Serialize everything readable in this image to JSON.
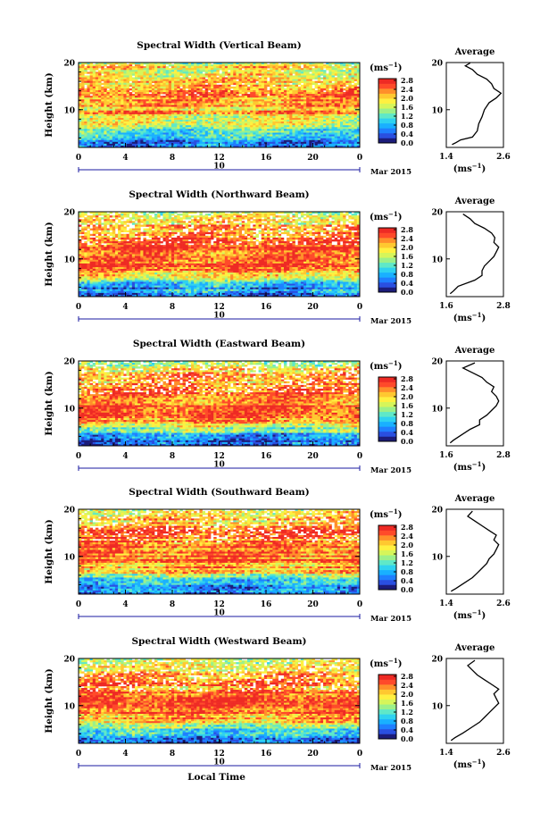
{
  "figure": {
    "xlabel_bottom": "Local Time",
    "date_label": "Mar 2015",
    "date_day": "10",
    "unit_label": "(ms",
    "unit_exp": "−1",
    "avg_title": "Average"
  },
  "palette": [
    "#1c1c7a",
    "#2a4fe0",
    "#1f7fff",
    "#19b0ff",
    "#2fd2f0",
    "#5fe8c8",
    "#9cf08a",
    "#d6f55a",
    "#fff040",
    "#ffc830",
    "#ff8f2a",
    "#ff4a2a",
    "#ee2a24"
  ],
  "chart_data": [
    {
      "type": "heatmap",
      "title": "Spectral Width (Vertical Beam)",
      "xlabel": "",
      "ylabel": "Height (km)",
      "xlim": [
        0,
        24
      ],
      "ylim": [
        2,
        20
      ],
      "xticks": [
        "0",
        "4",
        "8",
        "12",
        "16",
        "20",
        "0"
      ],
      "yticks": [
        "20",
        "10"
      ],
      "colorbar": {
        "unit": "ms-1",
        "ticks": [
          "0.0",
          "0.4",
          "0.8",
          "1.2",
          "1.6",
          "2.0",
          "2.4",
          "2.8"
        ]
      },
      "height_profile": [
        [
          3,
          0.5
        ],
        [
          5,
          1.0
        ],
        [
          7,
          1.8
        ],
        [
          9,
          2.2
        ],
        [
          11,
          2.3
        ],
        [
          13,
          2.6
        ],
        [
          15,
          2.4
        ],
        [
          17,
          2.1
        ],
        [
          19,
          1.9
        ],
        [
          20,
          1.6
        ]
      ],
      "average_profile": {
        "xlim": [
          1.4,
          2.6
        ],
        "xticks": [
          "1.4",
          "2.6"
        ],
        "points": [
          [
            1.52,
            2.6
          ],
          [
            1.6,
            3.0
          ],
          [
            1.7,
            3.6
          ],
          [
            1.95,
            4.2
          ],
          [
            2.05,
            5.5
          ],
          [
            2.08,
            7.0
          ],
          [
            2.15,
            8.5
          ],
          [
            2.2,
            10.0
          ],
          [
            2.3,
            11.5
          ],
          [
            2.45,
            12.5
          ],
          [
            2.55,
            13.5
          ],
          [
            2.4,
            14.5
          ],
          [
            2.35,
            15.5
          ],
          [
            2.25,
            16.5
          ],
          [
            2.05,
            17.5
          ],
          [
            1.95,
            18.5
          ],
          [
            1.8,
            19.3
          ],
          [
            1.9,
            19.9
          ]
        ]
      }
    },
    {
      "type": "heatmap",
      "title": "Spectral Width (Northward Beam)",
      "xlabel": "",
      "ylabel": "Height (km)",
      "xlim": [
        0,
        24
      ],
      "ylim": [
        2,
        20
      ],
      "xticks": [
        "0",
        "4",
        "8",
        "12",
        "16",
        "20",
        "0"
      ],
      "yticks": [
        "20",
        "10"
      ],
      "colorbar": {
        "unit": "ms-1",
        "ticks": [
          "0.0",
          "0.4",
          "0.8",
          "1.2",
          "1.6",
          "2.0",
          "2.4",
          "2.8"
        ]
      },
      "height_profile": [
        [
          3,
          0.7
        ],
        [
          5,
          1.2
        ],
        [
          7,
          2.2
        ],
        [
          9,
          2.6
        ],
        [
          11,
          2.7
        ],
        [
          13,
          2.6
        ],
        [
          15,
          2.5
        ],
        [
          17,
          2.2
        ],
        [
          19,
          2.0
        ],
        [
          20,
          1.8
        ]
      ],
      "average_profile": {
        "xlim": [
          1.6,
          2.8
        ],
        "xticks": [
          "1.6",
          "2.8"
        ],
        "points": [
          [
            1.68,
            2.6
          ],
          [
            1.75,
            3.2
          ],
          [
            1.85,
            4.2
          ],
          [
            2.2,
            5.5
          ],
          [
            2.35,
            6.5
          ],
          [
            2.35,
            7.5
          ],
          [
            2.4,
            8.5
          ],
          [
            2.5,
            9.5
          ],
          [
            2.6,
            10.5
          ],
          [
            2.65,
            11.5
          ],
          [
            2.7,
            12.5
          ],
          [
            2.6,
            13.5
          ],
          [
            2.62,
            14.5
          ],
          [
            2.55,
            15.5
          ],
          [
            2.4,
            16.5
          ],
          [
            2.2,
            17.5
          ],
          [
            2.1,
            18.5
          ],
          [
            1.95,
            19.5
          ]
        ]
      }
    },
    {
      "type": "heatmap",
      "title": "Spectral Width (Eastward Beam)",
      "xlabel": "",
      "ylabel": "Height (km)",
      "xlim": [
        0,
        24
      ],
      "ylim": [
        2,
        20
      ],
      "xticks": [
        "0",
        "4",
        "8",
        "12",
        "16",
        "20",
        "0"
      ],
      "yticks": [
        "20",
        "10"
      ],
      "colorbar": {
        "unit": "ms-1",
        "ticks": [
          "0.0",
          "0.4",
          "0.8",
          "1.2",
          "1.6",
          "2.0",
          "2.4",
          "2.8"
        ]
      },
      "height_profile": [
        [
          3,
          0.6
        ],
        [
          5,
          1.3
        ],
        [
          7,
          2.3
        ],
        [
          9,
          2.7
        ],
        [
          11,
          2.7
        ],
        [
          13,
          2.5
        ],
        [
          15,
          2.4
        ],
        [
          17,
          2.1
        ],
        [
          19,
          2.0
        ],
        [
          20,
          1.7
        ]
      ],
      "average_profile": {
        "xlim": [
          1.6,
          2.8
        ],
        "xticks": [
          "1.6",
          "2.8"
        ],
        "points": [
          [
            1.68,
            2.6
          ],
          [
            1.75,
            3.2
          ],
          [
            1.9,
            4.2
          ],
          [
            2.1,
            5.5
          ],
          [
            2.3,
            6.5
          ],
          [
            2.3,
            7.5
          ],
          [
            2.45,
            8.5
          ],
          [
            2.55,
            9.5
          ],
          [
            2.65,
            10.5
          ],
          [
            2.7,
            11.5
          ],
          [
            2.65,
            12.5
          ],
          [
            2.55,
            13.5
          ],
          [
            2.6,
            14.5
          ],
          [
            2.45,
            15.5
          ],
          [
            2.35,
            16.5
          ],
          [
            2.15,
            17.5
          ],
          [
            1.95,
            18.5
          ],
          [
            2.2,
            19.6
          ]
        ]
      }
    },
    {
      "type": "heatmap",
      "title": "Spectral Width (Southward Beam)",
      "xlabel": "",
      "ylabel": "Height (km)",
      "xlim": [
        0,
        24
      ],
      "ylim": [
        2,
        20
      ],
      "xticks": [
        "0",
        "4",
        "8",
        "12",
        "16",
        "20",
        "0"
      ],
      "yticks": [
        "20",
        "10"
      ],
      "colorbar": {
        "unit": "ms-1",
        "ticks": [
          "0.0",
          "0.4",
          "0.8",
          "1.2",
          "1.6",
          "2.0",
          "2.4",
          "2.8"
        ]
      },
      "height_profile": [
        [
          3,
          0.6
        ],
        [
          5,
          1.2
        ],
        [
          7,
          2.1
        ],
        [
          9,
          2.6
        ],
        [
          11,
          2.6
        ],
        [
          13,
          2.5
        ],
        [
          15,
          2.5
        ],
        [
          17,
          2.2
        ],
        [
          19,
          2.0
        ],
        [
          20,
          1.8
        ]
      ],
      "average_profile": {
        "xlim": [
          1.4,
          2.6
        ],
        "xticks": [
          "1.4",
          "2.6"
        ],
        "points": [
          [
            1.5,
            2.6
          ],
          [
            1.6,
            3.2
          ],
          [
            1.75,
            4.2
          ],
          [
            1.95,
            5.5
          ],
          [
            2.05,
            6.5
          ],
          [
            2.15,
            7.5
          ],
          [
            2.25,
            8.5
          ],
          [
            2.3,
            9.5
          ],
          [
            2.4,
            10.5
          ],
          [
            2.45,
            11.5
          ],
          [
            2.5,
            12.5
          ],
          [
            2.4,
            13.5
          ],
          [
            2.45,
            14.5
          ],
          [
            2.3,
            15.5
          ],
          [
            2.15,
            16.5
          ],
          [
            2.0,
            17.5
          ],
          [
            1.85,
            18.5
          ],
          [
            1.95,
            19.6
          ]
        ]
      }
    },
    {
      "type": "heatmap",
      "title": "Spectral Width (Westward Beam)",
      "xlabel": "Local Time",
      "ylabel": "Height (km)",
      "xlim": [
        0,
        24
      ],
      "ylim": [
        2,
        20
      ],
      "xticks": [
        "0",
        "4",
        "8",
        "12",
        "16",
        "20",
        "0"
      ],
      "yticks": [
        "20",
        "10"
      ],
      "colorbar": {
        "unit": "ms-1",
        "ticks": [
          "0.0",
          "0.4",
          "0.8",
          "1.2",
          "1.6",
          "2.0",
          "2.4",
          "2.8"
        ]
      },
      "height_profile": [
        [
          3,
          0.6
        ],
        [
          5,
          1.2
        ],
        [
          7,
          2.2
        ],
        [
          9,
          2.6
        ],
        [
          11,
          2.6
        ],
        [
          13,
          2.5
        ],
        [
          15,
          2.3
        ],
        [
          17,
          2.1
        ],
        [
          19,
          1.9
        ],
        [
          20,
          1.7
        ]
      ],
      "average_profile": {
        "xlim": [
          1.4,
          2.6
        ],
        "xticks": [
          "1.4",
          "2.6"
        ],
        "points": [
          [
            1.5,
            2.6
          ],
          [
            1.58,
            3.2
          ],
          [
            1.75,
            4.2
          ],
          [
            1.95,
            5.5
          ],
          [
            2.1,
            6.5
          ],
          [
            2.2,
            7.5
          ],
          [
            2.3,
            8.5
          ],
          [
            2.4,
            9.5
          ],
          [
            2.5,
            10.5
          ],
          [
            2.45,
            11.5
          ],
          [
            2.4,
            12.5
          ],
          [
            2.5,
            13.5
          ],
          [
            2.35,
            14.5
          ],
          [
            2.2,
            15.5
          ],
          [
            2.05,
            16.5
          ],
          [
            1.95,
            17.5
          ],
          [
            1.85,
            18.5
          ],
          [
            2.0,
            19.6
          ]
        ]
      }
    }
  ]
}
